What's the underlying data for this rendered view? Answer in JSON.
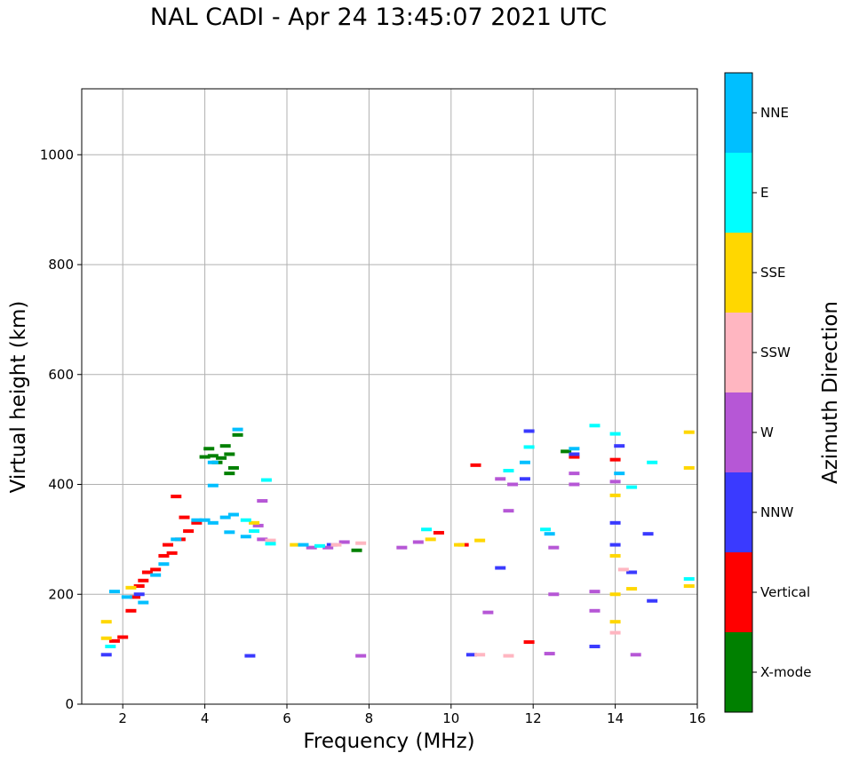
{
  "chart_data": {
    "type": "scatter",
    "title": "NAL CADI - Apr 24 13:45:07 2021 UTC",
    "xlabel": "Frequency (MHz)",
    "ylabel": "Virtual height (km)",
    "xlim": [
      1.0,
      16.0
    ],
    "ylim": [
      0,
      1120
    ],
    "xticks": [
      2,
      4,
      6,
      8,
      10,
      12,
      14,
      16
    ],
    "yticks": [
      0,
      200,
      400,
      600,
      800,
      1000
    ],
    "grid": true,
    "colorbar": {
      "label": "Azimuth Direction",
      "categories": [
        {
          "name": "X-mode",
          "color": "#008000"
        },
        {
          "name": "Vertical",
          "color": "#ff0000"
        },
        {
          "name": "NNW",
          "color": "#3a3aff"
        },
        {
          "name": "W",
          "color": "#b657d6"
        },
        {
          "name": "SSW",
          "color": "#ffb6c1"
        },
        {
          "name": "SSE",
          "color": "#ffd700"
        },
        {
          "name": "E",
          "color": "#00ffff"
        },
        {
          "name": "NNE",
          "color": "#00bfff"
        }
      ]
    },
    "series": [
      {
        "name": "X-mode",
        "color": "#008000",
        "points": [
          [
            4.0,
            450
          ],
          [
            4.2,
            452
          ],
          [
            4.4,
            448
          ],
          [
            4.6,
            455
          ],
          [
            4.1,
            465
          ],
          [
            4.5,
            470
          ],
          [
            4.7,
            430
          ],
          [
            4.8,
            490
          ],
          [
            4.6,
            420
          ],
          [
            4.3,
            440
          ],
          [
            7.7,
            280
          ],
          [
            12.8,
            460
          ]
        ]
      },
      {
        "name": "Vertical",
        "color": "#ff0000",
        "points": [
          [
            1.8,
            115
          ],
          [
            2.0,
            122
          ],
          [
            2.2,
            170
          ],
          [
            2.4,
            215
          ],
          [
            2.5,
            225
          ],
          [
            2.6,
            240
          ],
          [
            2.8,
            245
          ],
          [
            3.0,
            270
          ],
          [
            3.1,
            290
          ],
          [
            3.2,
            275
          ],
          [
            3.4,
            300
          ],
          [
            3.6,
            315
          ],
          [
            3.8,
            330
          ],
          [
            3.5,
            340
          ],
          [
            3.3,
            378
          ],
          [
            2.3,
            195
          ],
          [
            9.7,
            312
          ],
          [
            10.3,
            290
          ],
          [
            11.9,
            113
          ],
          [
            10.6,
            435
          ],
          [
            13.0,
            450
          ],
          [
            14.0,
            445
          ]
        ]
      },
      {
        "name": "NNW",
        "color": "#3a3aff",
        "points": [
          [
            1.6,
            90
          ],
          [
            2.4,
            200
          ],
          [
            5.1,
            88
          ],
          [
            7.1,
            290
          ],
          [
            10.5,
            90
          ],
          [
            11.2,
            248
          ],
          [
            11.9,
            497
          ],
          [
            11.8,
            410
          ],
          [
            13.0,
            455
          ],
          [
            14.0,
            290
          ],
          [
            14.1,
            470
          ],
          [
            14.0,
            330
          ],
          [
            14.4,
            240
          ],
          [
            14.8,
            310
          ],
          [
            14.9,
            188
          ],
          [
            13.5,
            105
          ]
        ]
      },
      {
        "name": "W",
        "color": "#b657d6",
        "points": [
          [
            5.4,
            370
          ],
          [
            5.3,
            325
          ],
          [
            5.4,
            300
          ],
          [
            6.6,
            285
          ],
          [
            7.0,
            285
          ],
          [
            7.4,
            295
          ],
          [
            7.8,
            88
          ],
          [
            8.8,
            285
          ],
          [
            9.2,
            295
          ],
          [
            10.9,
            167
          ],
          [
            11.2,
            410
          ],
          [
            11.4,
            352
          ],
          [
            11.5,
            400
          ],
          [
            12.4,
            92
          ],
          [
            12.5,
            285
          ],
          [
            12.5,
            200
          ],
          [
            13.0,
            420
          ],
          [
            13.0,
            400
          ],
          [
            13.5,
            205
          ],
          [
            13.5,
            170
          ],
          [
            14.0,
            405
          ],
          [
            14.5,
            90
          ]
        ]
      },
      {
        "name": "SSW",
        "color": "#ffb6c1",
        "points": [
          [
            5.6,
            298
          ],
          [
            7.2,
            290
          ],
          [
            7.8,
            293
          ],
          [
            10.7,
            90
          ],
          [
            11.4,
            88
          ],
          [
            14.0,
            130
          ],
          [
            14.2,
            245
          ]
        ]
      },
      {
        "name": "SSE",
        "color": "#ffd700",
        "points": [
          [
            1.6,
            150
          ],
          [
            1.6,
            120
          ],
          [
            2.2,
            212
          ],
          [
            5.2,
            330
          ],
          [
            6.2,
            290
          ],
          [
            9.5,
            300
          ],
          [
            10.2,
            290
          ],
          [
            10.7,
            298
          ],
          [
            14.0,
            200
          ],
          [
            14.0,
            150
          ],
          [
            14.0,
            270
          ],
          [
            14.0,
            380
          ],
          [
            14.4,
            210
          ],
          [
            15.8,
            430
          ],
          [
            15.8,
            495
          ],
          [
            15.8,
            215
          ]
        ]
      },
      {
        "name": "E",
        "color": "#00ffff",
        "points": [
          [
            1.7,
            105
          ],
          [
            5.0,
            335
          ],
          [
            5.2,
            315
          ],
          [
            5.6,
            292
          ],
          [
            5.5,
            408
          ],
          [
            6.8,
            288
          ],
          [
            9.4,
            318
          ],
          [
            11.4,
            425
          ],
          [
            11.9,
            468
          ],
          [
            12.3,
            318
          ],
          [
            14.0,
            492
          ],
          [
            14.4,
            395
          ],
          [
            14.9,
            440
          ],
          [
            15.8,
            228
          ],
          [
            13.5,
            507
          ]
        ]
      },
      {
        "name": "NNE",
        "color": "#00bfff",
        "points": [
          [
            1.8,
            205
          ],
          [
            2.1,
            195
          ],
          [
            2.5,
            185
          ],
          [
            2.8,
            235
          ],
          [
            3.0,
            255
          ],
          [
            3.3,
            300
          ],
          [
            3.8,
            335
          ],
          [
            4.0,
            335
          ],
          [
            4.2,
            330
          ],
          [
            4.5,
            340
          ],
          [
            4.7,
            345
          ],
          [
            4.8,
            500
          ],
          [
            4.2,
            440
          ],
          [
            4.2,
            398
          ],
          [
            4.6,
            313
          ],
          [
            5.0,
            305
          ],
          [
            6.4,
            290
          ],
          [
            12.4,
            310
          ],
          [
            13.0,
            465
          ],
          [
            11.8,
            440
          ],
          [
            14.1,
            420
          ]
        ]
      }
    ]
  }
}
